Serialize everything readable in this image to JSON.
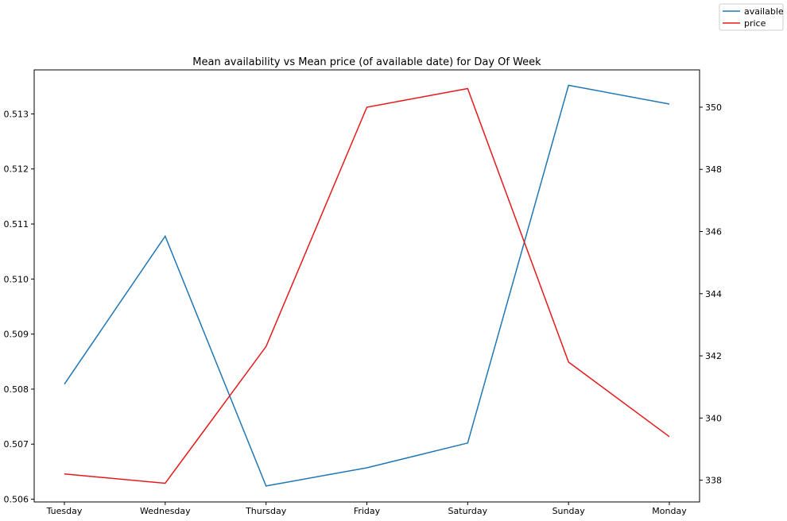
{
  "chart_data": {
    "type": "line",
    "title": "Mean availability vs Mean price (of available date) for Day Of Week",
    "xlabel": "",
    "ylabel": "",
    "categories": [
      "Tuesday",
      "Wednesday",
      "Thursday",
      "Friday",
      "Saturday",
      "Sunday",
      "Monday"
    ],
    "y_left_lim": [
      0.50595,
      0.5138
    ],
    "y_left_ticks": [
      "0.506",
      "0.507",
      "0.508",
      "0.509",
      "0.510",
      "0.511",
      "0.512",
      "0.513"
    ],
    "y_right_lim": [
      337.3,
      351.2
    ],
    "y_right_ticks": [
      "338",
      "340",
      "342",
      "344",
      "346",
      "348",
      "350"
    ],
    "grid": false,
    "legend_position": "top-right (outside plot)",
    "series": [
      {
        "name": "available",
        "axis": "left",
        "color": "#1f77b4",
        "values": [
          0.50809,
          0.51078,
          0.50624,
          0.50657,
          0.50702,
          0.51352,
          0.51318
        ]
      },
      {
        "name": "price",
        "axis": "right",
        "color": "#e41a1c",
        "values": [
          338.2,
          337.9,
          342.3,
          350.0,
          350.6,
          341.8,
          339.4
        ]
      }
    ]
  }
}
